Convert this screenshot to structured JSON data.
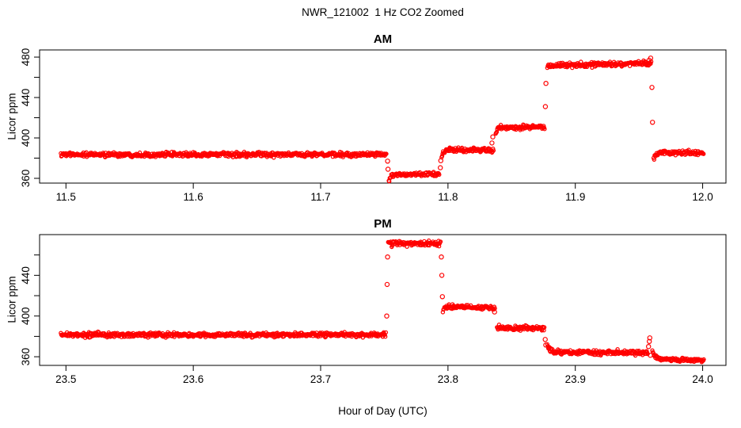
{
  "title": "NWR_121002  1 Hz CO2 Zoomed",
  "xlabel": "Hour of Day (UTC)",
  "colors": {
    "data": "#FF0000",
    "axis": "#000000",
    "background": "#FFFFFF"
  },
  "chart_data": [
    {
      "type": "scatter",
      "panel": "AM",
      "title": "AM",
      "ylabel": "Licor ppm",
      "marker": "open-circle",
      "grid": false,
      "legend": "none",
      "xlim": [
        11.4793,
        12.0183
      ],
      "ylim": [
        355.3,
        487.1
      ],
      "xticks": [
        11.5,
        11.6,
        11.7,
        11.8,
        11.9,
        12.0
      ],
      "xtick_labels": [
        "11.5",
        "11.6",
        "11.7",
        "11.8",
        "11.9",
        "12.0"
      ],
      "yticks": [
        360,
        380,
        400,
        420,
        440,
        460,
        480
      ],
      "ytick_labeled": [
        360,
        400,
        440,
        480
      ],
      "ytick_labels": [
        "360",
        "400",
        "440",
        "480"
      ],
      "segments": [
        {
          "t0": 11.496,
          "t1": 11.752,
          "v0": 383.5,
          "v1": 383.5,
          "sd": 1.1
        },
        {
          "t0": 11.7535,
          "t1": 11.7935,
          "v0": 364.0,
          "v1": 364.0,
          "sd": 1.1,
          "tail_v": 358.0,
          "tail_tau": 0.0015
        },
        {
          "t0": 11.795,
          "t1": 11.836,
          "v0": 388.0,
          "v1": 388.0,
          "sd": 1.1,
          "tail_v": 381.0,
          "tail_tau": 0.0012
        },
        {
          "t0": 11.8375,
          "t1": 11.876,
          "v0": 410.0,
          "v1": 411.0,
          "sd": 1.1,
          "tail_v": 404.5,
          "tail_tau": 0.001
        },
        {
          "t0": 11.878,
          "t1": 11.96,
          "v0": 471.5,
          "v1": 474.0,
          "sd": 1.2
        },
        {
          "t0": 11.9615,
          "t1": 12.001,
          "v0": 385.5,
          "v1": 385.0,
          "sd": 1.1,
          "tail_v": 379.0,
          "tail_tau": 0.0015
        }
      ],
      "transition_points": [
        {
          "t": 11.7526,
          "v": 377.0
        },
        {
          "t": 11.7529,
          "v": 369.0
        },
        {
          "t": 11.794,
          "v": 370.5
        },
        {
          "t": 11.7944,
          "v": 377.5
        },
        {
          "t": 11.8345,
          "v": 395.0
        },
        {
          "t": 11.8352,
          "v": 401.0
        },
        {
          "t": 11.8765,
          "v": 431.0
        },
        {
          "t": 11.8769,
          "v": 454.0
        },
        {
          "t": 11.958,
          "v": 477.0
        },
        {
          "t": 11.9592,
          "v": 479.0
        },
        {
          "t": 11.9602,
          "v": 450.0
        },
        {
          "t": 11.9606,
          "v": 415.5
        }
      ]
    },
    {
      "type": "scatter",
      "panel": "PM",
      "title": "PM",
      "ylabel": "Licor ppm",
      "marker": "open-circle",
      "grid": false,
      "legend": "none",
      "xlim": [
        23.4793,
        24.0183
      ],
      "ylim": [
        351.5,
        480.0
      ],
      "xticks": [
        23.5,
        23.6,
        23.7,
        23.8,
        23.9,
        24.0
      ],
      "xtick_labels": [
        "23.5",
        "23.6",
        "23.7",
        "23.8",
        "23.9",
        "24.0"
      ],
      "yticks": [
        360,
        380,
        400,
        420,
        440,
        460
      ],
      "ytick_labeled": [
        360,
        400,
        440
      ],
      "ytick_labels": [
        "360",
        "400",
        "440"
      ],
      "segments": [
        {
          "t0": 23.496,
          "t1": 23.7515,
          "v0": 381.5,
          "v1": 381.5,
          "sd": 1.1
        },
        {
          "t0": 23.753,
          "t1": 23.7945,
          "v0": 471.5,
          "v1": 471.5,
          "sd": 1.3
        },
        {
          "t0": 23.796,
          "t1": 23.837,
          "v0": 409.0,
          "v1": 408.5,
          "sd": 1.1,
          "tail_v": 404.0,
          "tail_tau": 0.001
        },
        {
          "t0": 23.8385,
          "t1": 23.876,
          "v0": 388.5,
          "v1": 388.0,
          "sd": 1.1
        },
        {
          "t0": 23.878,
          "t1": 23.957,
          "v0": 364.5,
          "v1": 364.0,
          "sd": 1.1,
          "tail_v": 372.0,
          "tail_tau": 0.0018
        },
        {
          "t0": 23.9605,
          "t1": 24.001,
          "v0": 358.0,
          "v1": 356.0,
          "sd": 0.9,
          "tail_v": 366.0,
          "tail_tau": 0.0018
        }
      ],
      "transition_points": [
        {
          "t": 23.7519,
          "v": 400.0
        },
        {
          "t": 23.7522,
          "v": 431.0
        },
        {
          "t": 23.7526,
          "v": 458.0
        },
        {
          "t": 23.7948,
          "v": 458.0
        },
        {
          "t": 23.7952,
          "v": 440.0
        },
        {
          "t": 23.7956,
          "v": 419.0
        },
        {
          "t": 23.8366,
          "v": 404.0
        },
        {
          "t": 23.8764,
          "v": 377.0
        },
        {
          "t": 23.8768,
          "v": 371.5
        },
        {
          "t": 23.9575,
          "v": 370.0
        },
        {
          "t": 23.9581,
          "v": 375.0
        },
        {
          "t": 23.9585,
          "v": 378.5
        },
        {
          "t": 23.9589,
          "v": 361.5
        }
      ]
    }
  ]
}
